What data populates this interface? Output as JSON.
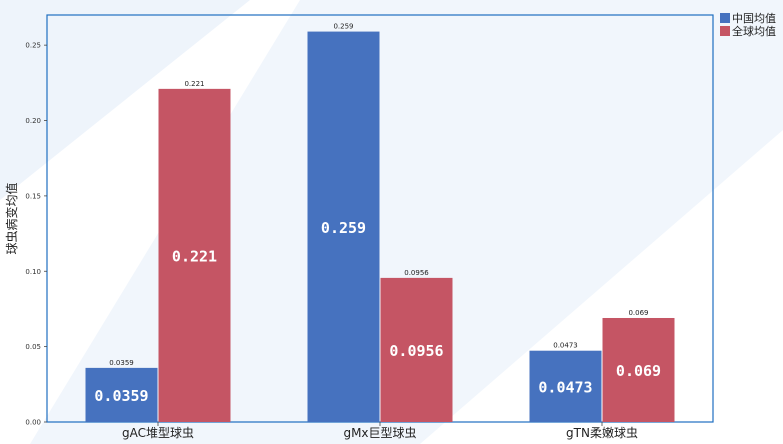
{
  "chart_data": {
    "type": "bar",
    "categories": [
      "gAC堆型球虫",
      "gMx巨型球虫",
      "gTN柔嫩球虫"
    ],
    "series": [
      {
        "name": "中国均值",
        "color": "#4672bf",
        "values": [
          0.0359,
          0.259,
          0.0473
        ],
        "labels": [
          "0.0359",
          "0.259",
          "0.0473"
        ]
      },
      {
        "name": "全球均值",
        "color": "#c55564",
        "values": [
          0.221,
          0.0956,
          0.069
        ],
        "labels": [
          "0.221",
          "0.0956",
          "0.069"
        ]
      }
    ],
    "title": "",
    "xlabel": "",
    "ylabel": "球虫病变均值",
    "ylim": [
      0,
      0.27
    ],
    "yticks": [
      0,
      0.05,
      0.1,
      0.15,
      0.2,
      0.25
    ],
    "ytick_labels": [
      "0.00",
      "0.05",
      "0.10",
      "0.15",
      "0.20",
      "0.25"
    ],
    "grid": false,
    "legend_position": "top-right",
    "axis_color": "#1f6fc0"
  }
}
